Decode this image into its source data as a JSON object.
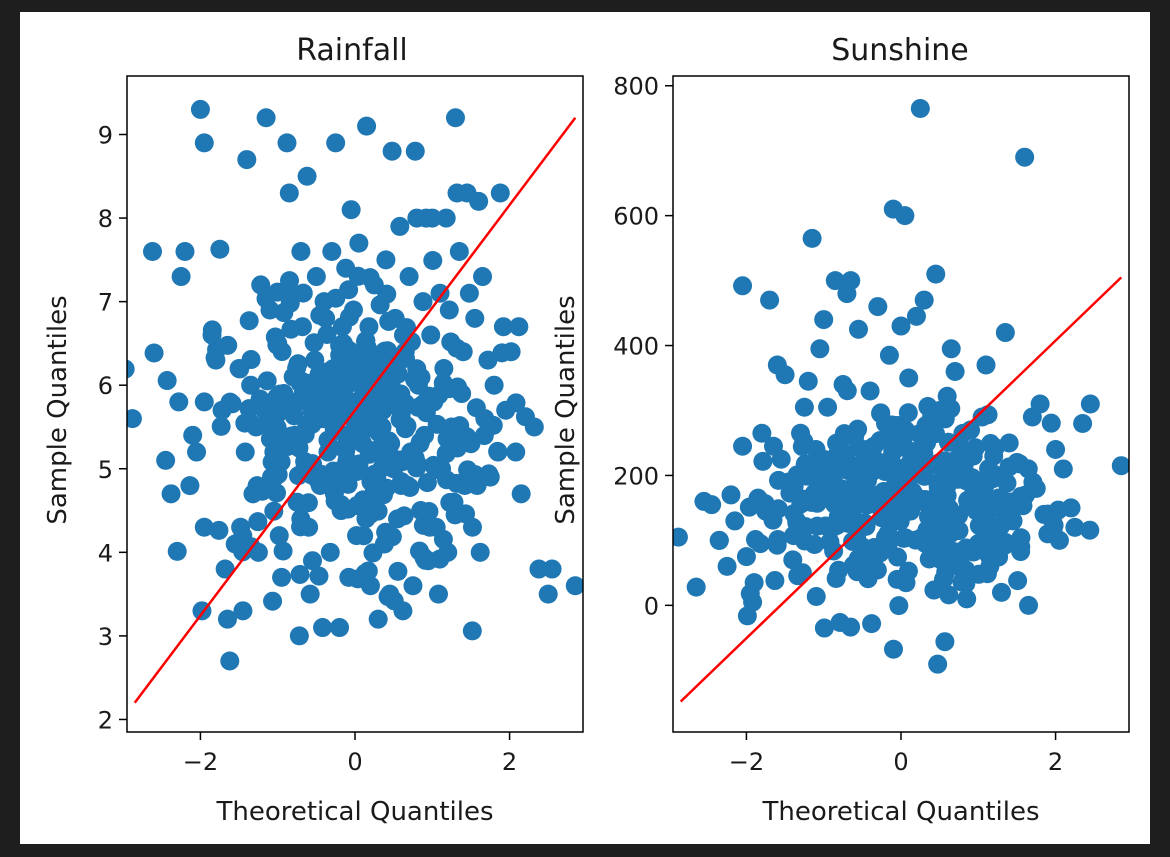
{
  "figure": {
    "background": "#ffffff",
    "frame": "#1e1e1e"
  },
  "chart_data": [
    {
      "type": "scatter",
      "title": "Rainfall",
      "xlabel": "Theoretical Quantiles",
      "ylabel": "Sample Quantiles",
      "xlim": [
        -2.95,
        2.95
      ],
      "ylim": [
        1.85,
        9.7
      ],
      "xticks": [
        -2,
        0,
        2
      ],
      "yticks": [
        2,
        3,
        4,
        5,
        6,
        7,
        8,
        9
      ],
      "point_color": "#1f77b4",
      "line_color": "#ff0000",
      "reference_line": {
        "x": [
          -2.85,
          2.85
        ],
        "y": [
          2.2,
          9.2
        ]
      },
      "points": [
        [
          -2.88,
          5.6
        ],
        [
          -2.62,
          7.6
        ],
        [
          -2.45,
          5.1
        ],
        [
          -2.38,
          4.7
        ],
        [
          -2.25,
          7.3
        ],
        [
          -2.2,
          7.6
        ],
        [
          -2.28,
          5.8
        ],
        [
          -2.1,
          5.4
        ],
        [
          -2.05,
          5.2
        ],
        [
          -1.95,
          4.3
        ],
        [
          -1.98,
          3.3
        ],
        [
          -1.95,
          5.8
        ],
        [
          -2.0,
          9.3
        ],
        [
          -1.95,
          8.9
        ],
        [
          -1.85,
          6.6
        ],
        [
          -1.8,
          6.3
        ],
        [
          -1.72,
          5.7
        ],
        [
          -1.68,
          3.8
        ],
        [
          -1.65,
          3.2
        ],
        [
          -1.62,
          2.7
        ],
        [
          -1.55,
          4.1
        ],
        [
          -1.5,
          6.2
        ],
        [
          -1.48,
          4.3
        ],
        [
          -1.45,
          3.3
        ],
        [
          -1.42,
          5.2
        ],
        [
          -1.4,
          8.7
        ],
        [
          -1.35,
          6.0
        ],
        [
          -1.32,
          4.7
        ],
        [
          -1.28,
          5.5
        ],
        [
          -1.25,
          4.0
        ],
        [
          -1.22,
          7.2
        ],
        [
          -1.2,
          5.8
        ],
        [
          -1.15,
          9.2
        ],
        [
          -1.1,
          6.9
        ],
        [
          -1.08,
          4.9
        ],
        [
          -1.05,
          5.2
        ],
        [
          -1.0,
          6.5
        ],
        [
          -0.98,
          4.2
        ],
        [
          -0.95,
          3.7
        ],
        [
          -0.92,
          5.9
        ],
        [
          -0.88,
          8.9
        ],
        [
          -0.85,
          8.3
        ],
        [
          -0.82,
          7.1
        ],
        [
          -0.8,
          6.1
        ],
        [
          -0.78,
          5.4
        ],
        [
          -0.75,
          4.6
        ],
        [
          -0.72,
          3.0
        ],
        [
          -0.7,
          7.6
        ],
        [
          -0.68,
          6.7
        ],
        [
          -0.65,
          5.0
        ],
        [
          -0.62,
          8.5
        ],
        [
          -0.6,
          4.3
        ],
        [
          -0.58,
          3.5
        ],
        [
          -0.55,
          3.9
        ],
        [
          -0.52,
          6.3
        ],
        [
          -0.5,
          7.3
        ],
        [
          -0.48,
          5.7
        ],
        [
          -0.45,
          4.8
        ],
        [
          -0.42,
          3.1
        ],
        [
          -0.4,
          7.0
        ],
        [
          -0.38,
          6.8
        ],
        [
          -0.35,
          5.2
        ],
        [
          -0.32,
          4.0
        ],
        [
          -0.3,
          7.6
        ],
        [
          -0.28,
          6.2
        ],
        [
          -0.25,
          8.9
        ],
        [
          -0.22,
          5.6
        ],
        [
          -0.2,
          3.1
        ],
        [
          -0.18,
          4.5
        ],
        [
          -0.15,
          6.5
        ],
        [
          -0.12,
          7.4
        ],
        [
          -0.1,
          5.0
        ],
        [
          -0.08,
          3.7
        ],
        [
          -0.05,
          8.1
        ],
        [
          -0.02,
          6.9
        ],
        [
          0.0,
          5.4
        ],
        [
          0.02,
          4.2
        ],
        [
          0.05,
          7.7
        ],
        [
          0.08,
          6.0
        ],
        [
          0.1,
          5.3
        ],
        [
          0.12,
          4.6
        ],
        [
          0.15,
          9.1
        ],
        [
          0.18,
          6.7
        ],
        [
          0.2,
          3.6
        ],
        [
          0.22,
          5.8
        ],
        [
          0.25,
          7.2
        ],
        [
          0.28,
          4.9
        ],
        [
          0.3,
          3.2
        ],
        [
          0.32,
          6.3
        ],
        [
          0.35,
          5.5
        ],
        [
          0.38,
          4.1
        ],
        [
          0.4,
          7.5
        ],
        [
          0.42,
          6.1
        ],
        [
          0.45,
          3.5
        ],
        [
          0.48,
          8.8
        ],
        [
          0.5,
          5.0
        ],
        [
          0.52,
          6.8
        ],
        [
          0.55,
          4.4
        ],
        [
          0.58,
          7.9
        ],
        [
          0.6,
          5.6
        ],
        [
          0.62,
          3.3
        ],
        [
          0.65,
          6.4
        ],
        [
          0.68,
          4.8
        ],
        [
          0.7,
          7.3
        ],
        [
          0.72,
          5.2
        ],
        [
          0.75,
          3.6
        ],
        [
          0.78,
          8.8
        ],
        [
          0.8,
          8.0
        ],
        [
          0.82,
          6.0
        ],
        [
          0.85,
          4.5
        ],
        [
          0.88,
          7.0
        ],
        [
          0.9,
          5.4
        ],
        [
          0.92,
          8.0
        ],
        [
          0.95,
          3.9
        ],
        [
          0.98,
          6.6
        ],
        [
          1.0,
          8.0
        ],
        [
          1.02,
          5.8
        ],
        [
          1.05,
          4.3
        ],
        [
          1.08,
          3.5
        ],
        [
          1.1,
          7.1
        ],
        [
          1.12,
          5.0
        ],
        [
          1.15,
          6.2
        ],
        [
          1.18,
          8.0
        ],
        [
          1.2,
          4.0
        ],
        [
          1.22,
          6.9
        ],
        [
          1.25,
          5.5
        ],
        [
          1.28,
          4.6
        ],
        [
          1.3,
          9.2
        ],
        [
          1.32,
          8.3
        ],
        [
          1.35,
          7.6
        ],
        [
          1.38,
          5.9
        ],
        [
          1.4,
          6.4
        ],
        [
          1.42,
          4.8
        ],
        [
          1.45,
          8.3
        ],
        [
          1.48,
          7.1
        ],
        [
          1.5,
          5.3
        ],
        [
          1.52,
          4.3
        ],
        [
          1.55,
          6.8
        ],
        [
          1.58,
          4.8
        ],
        [
          1.6,
          8.2
        ],
        [
          1.62,
          4.0
        ],
        [
          1.65,
          7.3
        ],
        [
          1.68,
          5.6
        ],
        [
          1.72,
          6.3
        ],
        [
          1.75,
          4.9
        ],
        [
          1.8,
          6.0
        ],
        [
          1.85,
          5.2
        ],
        [
          1.88,
          8.3
        ],
        [
          1.92,
          6.7
        ],
        [
          1.95,
          5.7
        ],
        [
          2.02,
          6.4
        ],
        [
          2.08,
          5.2
        ],
        [
          2.12,
          6.7
        ],
        [
          2.15,
          4.7
        ],
        [
          2.32,
          5.5
        ],
        [
          2.38,
          3.8
        ],
        [
          2.5,
          3.5
        ],
        [
          2.55,
          3.8
        ],
        [
          2.85,
          3.6
        ]
      ],
      "dense_cluster": {
        "center": [
          0.0,
          5.5
        ],
        "spread": [
          0.85,
          0.8
        ],
        "count": 320
      }
    },
    {
      "type": "scatter",
      "title": "Sunshine",
      "xlabel": "Theoretical Quantiles",
      "ylabel": "Sample Quantiles",
      "xlim": [
        -2.95,
        2.95
      ],
      "ylim": [
        -195,
        815
      ],
      "xticks": [
        -2,
        0,
        2
      ],
      "yticks": [
        0,
        200,
        400,
        600,
        800
      ],
      "point_color": "#1f77b4",
      "line_color": "#ff0000",
      "reference_line": {
        "x": [
          -2.85,
          2.85
        ],
        "y": [
          -148,
          505
        ]
      },
      "points": [
        [
          -2.88,
          105
        ],
        [
          -2.65,
          28
        ],
        [
          -2.55,
          160
        ],
        [
          -2.45,
          155
        ],
        [
          -2.35,
          100
        ],
        [
          -2.25,
          60
        ],
        [
          -2.2,
          170
        ],
        [
          -2.15,
          130
        ],
        [
          -2.05,
          492
        ],
        [
          -2.05,
          245
        ],
        [
          -2.0,
          75
        ],
        [
          -1.95,
          18
        ],
        [
          -1.92,
          5
        ],
        [
          -1.9,
          35
        ],
        [
          -1.85,
          165
        ],
        [
          -1.82,
          95
        ],
        [
          -1.8,
          265
        ],
        [
          -1.75,
          145
        ],
        [
          -1.7,
          470
        ],
        [
          -1.65,
          245
        ],
        [
          -1.6,
          370
        ],
        [
          -1.55,
          225
        ],
        [
          -1.5,
          355
        ],
        [
          -1.45,
          190
        ],
        [
          -1.4,
          70
        ],
        [
          -1.35,
          130
        ],
        [
          -1.3,
          265
        ],
        [
          -1.25,
          305
        ],
        [
          -1.2,
          345
        ],
        [
          -1.15,
          565
        ],
        [
          -1.1,
          240
        ],
        [
          -1.05,
          395
        ],
        [
          -1.0,
          440
        ],
        [
          -0.95,
          305
        ],
        [
          -0.9,
          210
        ],
        [
          -0.85,
          500
        ],
        [
          -0.8,
          150
        ],
        [
          -0.75,
          340
        ],
        [
          -0.7,
          480
        ],
        [
          -0.65,
          500
        ],
        [
          -0.6,
          260
        ],
        [
          -0.55,
          425
        ],
        [
          -0.5,
          90
        ],
        [
          -0.45,
          195
        ],
        [
          -0.4,
          330
        ],
        [
          -0.35,
          245
        ],
        [
          -0.3,
          460
        ],
        [
          -0.25,
          135
        ],
        [
          -0.2,
          280
        ],
        [
          -0.15,
          385
        ],
        [
          -0.1,
          610
        ],
        [
          -0.05,
          40
        ],
        [
          0.0,
          430
        ],
        [
          0.05,
          600
        ],
        [
          0.1,
          350
        ],
        [
          0.15,
          175
        ],
        [
          0.2,
          445
        ],
        [
          0.25,
          765
        ],
        [
          0.3,
          470
        ],
        [
          0.35,
          260
        ],
        [
          0.4,
          140
        ],
        [
          0.45,
          510
        ],
        [
          0.5,
          300
        ],
        [
          0.55,
          40
        ],
        [
          0.6,
          185
        ],
        [
          0.65,
          395
        ],
        [
          0.7,
          360
        ],
        [
          0.75,
          115
        ],
        [
          0.8,
          230
        ],
        [
          0.85,
          10
        ],
        [
          0.9,
          270
        ],
        [
          0.95,
          170
        ],
        [
          1.0,
          95
        ],
        [
          1.05,
          290
        ],
        [
          1.1,
          370
        ],
        [
          1.15,
          60
        ],
        [
          1.2,
          230
        ],
        [
          1.25,
          150
        ],
        [
          1.3,
          20
        ],
        [
          1.35,
          420
        ],
        [
          1.4,
          250
        ],
        [
          1.45,
          130
        ],
        [
          1.5,
          220
        ],
        [
          1.55,
          90
        ],
        [
          1.6,
          690
        ],
        [
          1.65,
          0
        ],
        [
          1.7,
          290
        ],
        [
          1.75,
          180
        ],
        [
          1.8,
          310
        ],
        [
          1.85,
          140
        ],
        [
          1.9,
          110
        ],
        [
          2.0,
          240
        ],
        [
          2.05,
          100
        ],
        [
          2.1,
          210
        ],
        [
          2.2,
          150
        ],
        [
          2.25,
          120
        ],
        [
          2.35,
          280
        ],
        [
          2.45,
          310
        ],
        [
          2.85,
          215
        ]
      ],
      "dense_cluster": {
        "center": [
          0.0,
          150
        ],
        "spread": [
          0.85,
          70
        ],
        "count": 320
      }
    }
  ]
}
